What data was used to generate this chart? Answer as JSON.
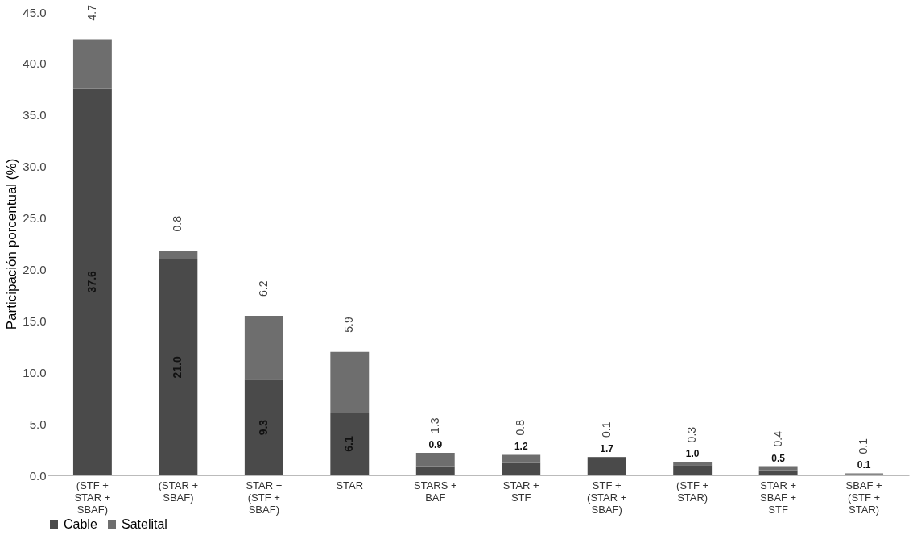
{
  "chart_data": {
    "type": "bar",
    "stacked": true,
    "ylabel": "Participación porcentual (%)",
    "categories": [
      "(STF +\nSTAR +\nSBAF)",
      "(STAR +\nSBAF)",
      "STAR +\n(STF +\nSBAF)",
      "STAR",
      "STARS +\nBAF",
      "STAR +\nSTF",
      "STF +\n(STAR +\nSBAF)",
      "(STF +\nSTAR)",
      "STAR +\nSBAF +\nSTF",
      "SBAF +\n(STF +\nSTAR)"
    ],
    "series": [
      {
        "name": "Cable",
        "color": "#4a4a4a",
        "values": [
          37.6,
          21.0,
          9.3,
          6.1,
          0.9,
          1.2,
          1.7,
          1.0,
          0.5,
          0.1
        ],
        "value_labels": [
          "37.6",
          "21.0",
          "9.3",
          "6.1",
          "0.9",
          "1.2",
          "1.7",
          "1.0",
          "0.5",
          "0.1"
        ]
      },
      {
        "name": "Satelital",
        "color": "#6e6e6e",
        "values": [
          4.7,
          0.8,
          6.2,
          5.9,
          1.3,
          0.8,
          0.1,
          0.3,
          0.4,
          0.1
        ],
        "value_labels": [
          "4.7",
          "0.8",
          "6.2",
          "5.9",
          "1.3",
          "0.8",
          "0.1",
          "0.3",
          "0.4",
          "0.1"
        ]
      }
    ],
    "ylim": [
      0,
      45
    ],
    "yticks": [
      {
        "value": 0,
        "label": "0.0"
      },
      {
        "value": 5,
        "label": "5.0"
      },
      {
        "value": 10,
        "label": "10.0"
      },
      {
        "value": 15,
        "label": "15.0"
      },
      {
        "value": 20,
        "label": "20.0"
      },
      {
        "value": 25,
        "label": "25.0"
      },
      {
        "value": 30,
        "label": "30.0"
      },
      {
        "value": 35,
        "label": "35.0"
      },
      {
        "value": 40,
        "label": "40.0"
      },
      {
        "value": 45,
        "label": "45.0"
      }
    ],
    "grid": false,
    "legend": "bottom"
  }
}
